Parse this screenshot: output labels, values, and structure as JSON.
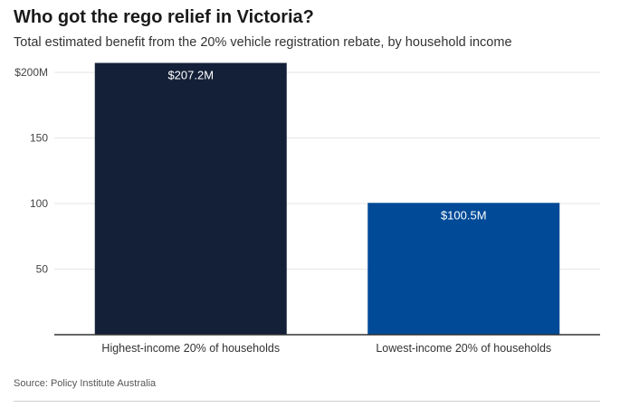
{
  "title": "Who got the rego relief in Victoria?",
  "subtitle": "Total estimated benefit from the 20% vehicle registration rebate, by household income",
  "source": "Source: Policy Institute Australia",
  "colors": {
    "background": "#ffffff",
    "grid": "#e6e6e6",
    "axis": "#333333",
    "label_on_bar": "#ffffff"
  },
  "chart_data": {
    "type": "bar",
    "categories": [
      "Highest-income 20% of households",
      "Lowest-income 20% of households"
    ],
    "values": [
      207.2,
      100.5
    ],
    "value_labels": [
      "$207.2M",
      "$100.5M"
    ],
    "bar_colors": [
      "#142038",
      "#004a98"
    ],
    "yticks": [
      50,
      100,
      150,
      200
    ],
    "ytick_labels": [
      "50",
      "100",
      "150",
      "$200M"
    ],
    "ylim": [
      0,
      200
    ],
    "xlabel": "",
    "ylabel": "",
    "grid": true,
    "legend": "none"
  }
}
